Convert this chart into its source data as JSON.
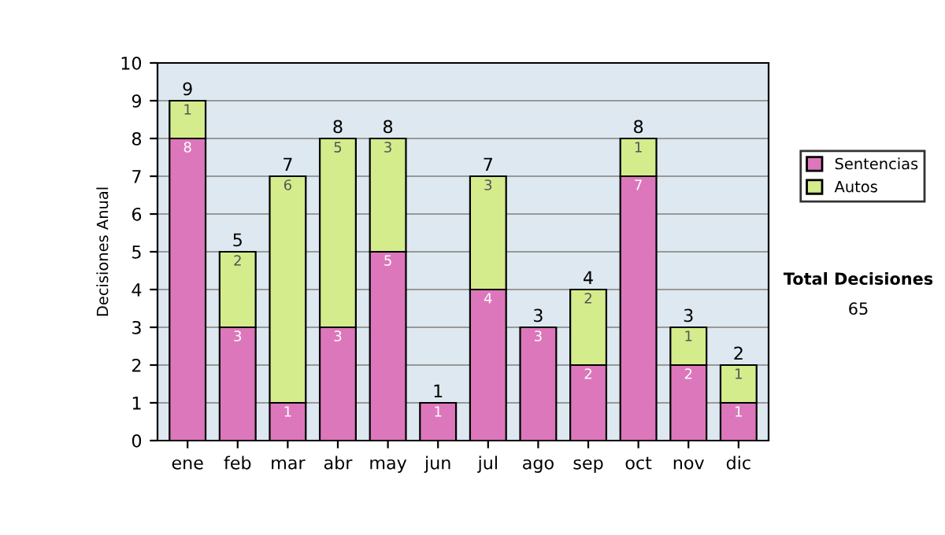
{
  "chart_data": {
    "type": "bar",
    "stacked": true,
    "ylabel": "Decisiones Anual",
    "categories": [
      "ene",
      "feb",
      "mar",
      "abr",
      "may",
      "jun",
      "jul",
      "ago",
      "sep",
      "oct",
      "nov",
      "dic"
    ],
    "series": [
      {
        "name": "Sentencias",
        "color": "#dd77bb",
        "values": [
          8,
          3,
          1,
          3,
          5,
          1,
          4,
          3,
          2,
          7,
          2,
          1
        ]
      },
      {
        "name": "Autos",
        "color": "#d4ec8c",
        "values": [
          1,
          2,
          6,
          5,
          3,
          null,
          3,
          null,
          2,
          1,
          1,
          1
        ]
      }
    ],
    "totals": [
      "9",
      "5",
      "7",
      "8",
      "8",
      "1",
      "7",
      "3",
      "4",
      "8",
      "3",
      "2"
    ],
    "data_labels": true,
    "ylim": [
      0,
      10
    ],
    "yticks": [
      0,
      1,
      2,
      3,
      4,
      5,
      6,
      7,
      8,
      9,
      10
    ],
    "grid": "y",
    "legend": "right",
    "annotations": [
      "Total Decisiones",
      "65"
    ]
  }
}
